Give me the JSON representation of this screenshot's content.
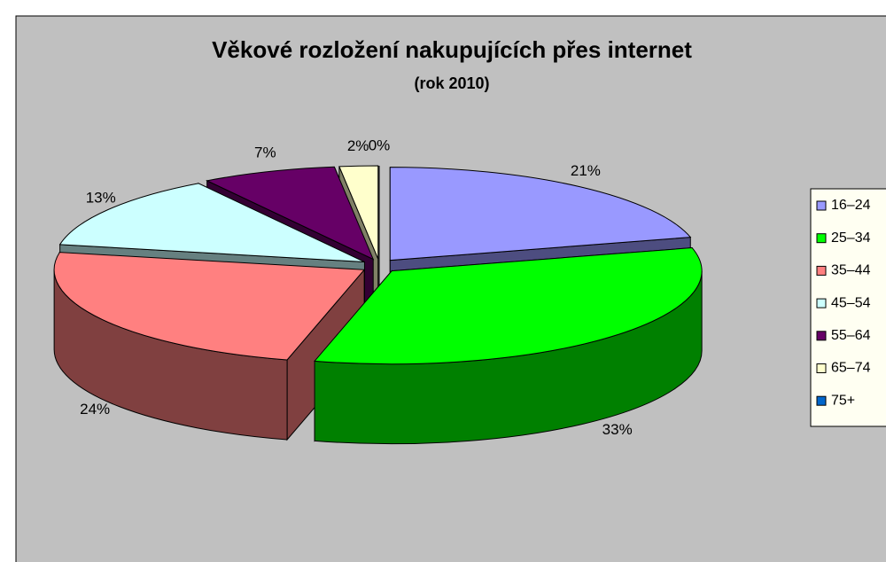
{
  "chart_data": {
    "type": "pie",
    "title": "Věkové rozložení nakupujících přes internet",
    "subtitle": "(rok 2010)",
    "categories": [
      "16–24",
      "25–34",
      "35–44",
      "45–54",
      "55–64",
      "65–74",
      "75+"
    ],
    "values": [
      21,
      33,
      24,
      13,
      7,
      2,
      0
    ],
    "value_labels": [
      "21%",
      "33%",
      "24%",
      "13%",
      "7%",
      "2%",
      "0%"
    ],
    "colors": [
      "#9999ff",
      "#00ff00",
      "#ff8080",
      "#ccffff",
      "#660066",
      "#ffffcc",
      "#0066cc"
    ],
    "legend": "right"
  }
}
